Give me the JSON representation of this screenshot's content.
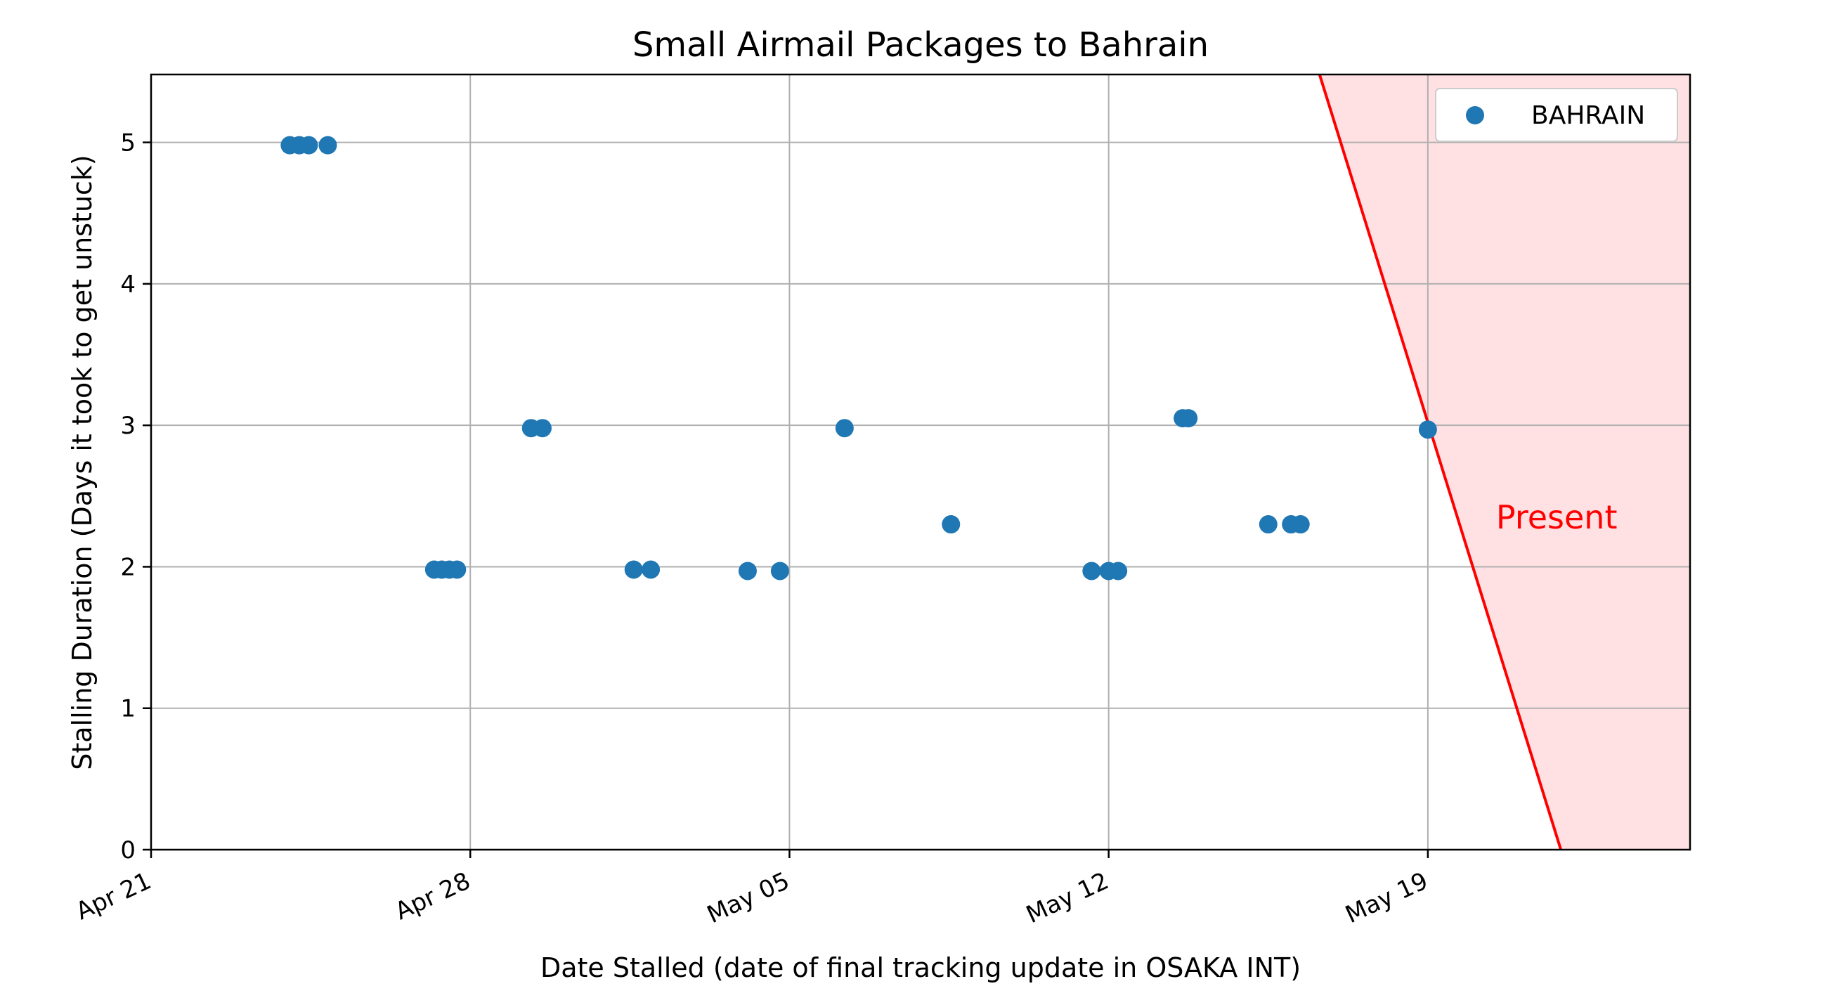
{
  "chart_data": {
    "type": "scatter",
    "title": "Small Airmail Packages to Bahrain",
    "xlabel": "Date Stalled (date of final tracking update in OSAKA INT)",
    "ylabel": "Stalling Duration (Days it took to get unstuck)",
    "x_type": "date",
    "xlim": [
      "2024-04-21T00:00",
      "2024-05-24T18:00"
    ],
    "ylim": [
      0,
      5.48
    ],
    "x_ticks": [
      {
        "date": "2024-04-21",
        "label": "Apr 21"
      },
      {
        "date": "2024-04-28",
        "label": "Apr 28"
      },
      {
        "date": "2024-05-05",
        "label": "May 05"
      },
      {
        "date": "2024-05-12",
        "label": "May 12"
      },
      {
        "date": "2024-05-19",
        "label": "May 19"
      }
    ],
    "y_ticks": [
      0,
      1,
      2,
      3,
      4,
      5
    ],
    "y_tick_labels": [
      "0",
      "1",
      "2",
      "3",
      "4",
      "5"
    ],
    "grid": true,
    "legend_position": "top-right",
    "colors": {
      "series": "#1f77b4",
      "present_line": "#ff0000",
      "present_fill": "#ffe0e3"
    },
    "series": [
      {
        "name": "BAHRAIN",
        "points": [
          {
            "x": "2024-04-24T01:00",
            "y": 4.98
          },
          {
            "x": "2024-04-24T06:00",
            "y": 4.98
          },
          {
            "x": "2024-04-24T11:00",
            "y": 4.98
          },
          {
            "x": "2024-04-24T21:00",
            "y": 4.98
          },
          {
            "x": "2024-04-27T05:00",
            "y": 1.98
          },
          {
            "x": "2024-04-27T09:00",
            "y": 1.98
          },
          {
            "x": "2024-04-27T13:00",
            "y": 1.98
          },
          {
            "x": "2024-04-27T17:00",
            "y": 1.98
          },
          {
            "x": "2024-04-29T08:00",
            "y": 2.98
          },
          {
            "x": "2024-04-29T14:00",
            "y": 2.98
          },
          {
            "x": "2024-05-01T14:00",
            "y": 1.98
          },
          {
            "x": "2024-05-01T23:00",
            "y": 1.98
          },
          {
            "x": "2024-05-04T02:00",
            "y": 1.97
          },
          {
            "x": "2024-05-04T19:00",
            "y": 1.97
          },
          {
            "x": "2024-05-06T05:00",
            "y": 2.98
          },
          {
            "x": "2024-05-08T13:00",
            "y": 2.3
          },
          {
            "x": "2024-05-11T15:00",
            "y": 1.97
          },
          {
            "x": "2024-05-12T00:00",
            "y": 1.97
          },
          {
            "x": "2024-05-12T05:00",
            "y": 1.97
          },
          {
            "x": "2024-05-13T15:00",
            "y": 3.05
          },
          {
            "x": "2024-05-13T18:00",
            "y": 3.05
          },
          {
            "x": "2024-05-15T12:00",
            "y": 2.3
          },
          {
            "x": "2024-05-16T00:00",
            "y": 2.3
          },
          {
            "x": "2024-05-16T05:00",
            "y": 2.3
          },
          {
            "x": "2024-05-19T00:00",
            "y": 2.97
          }
        ]
      }
    ],
    "present_line": {
      "label": "Present",
      "points": [
        {
          "x": "2024-05-16T15:00",
          "y": 5.48
        },
        {
          "x": "2024-05-21T22:00",
          "y": 0
        }
      ]
    }
  }
}
